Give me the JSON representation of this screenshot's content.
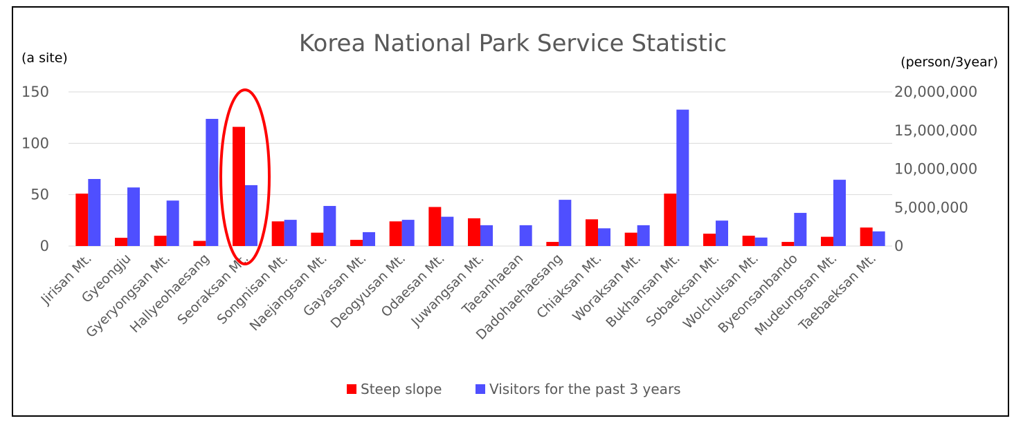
{
  "chart_data": {
    "type": "bar",
    "title": "Korea National Park Service Statistic",
    "left_axis_unit": "(a site)",
    "right_axis_unit": "(person/3year)",
    "categories": [
      "Jirisan Mt.",
      "Gyeongju",
      "Gyeryongsan Mt.",
      "Hallyeohaesang",
      "Seoraksan Mt.",
      "Songnisan Mt.",
      "Naejangsan Mt.",
      "Gayasan Mt.",
      "Deogyusan Mt.",
      "Odaesan Mt.",
      "Juwangsan Mt.",
      "Taeanhaean",
      "Dadohaehaesang",
      "Chiaksan Mt.",
      "Woraksan Mt.",
      "Bukhansan Mt.",
      "Sobaeksan Mt.",
      "Wolchulsan Mt.",
      "Byeonsanbando",
      "Mudeungsan Mt.",
      "Taebaeksan Mt."
    ],
    "series": [
      {
        "name": "Steep slope",
        "axis": "left",
        "color": "#ff0000",
        "values": [
          51,
          8,
          10,
          5,
          116,
          24,
          13,
          6,
          24,
          38,
          27,
          0,
          4,
          26,
          13,
          51,
          12,
          10,
          4,
          9,
          18
        ]
      },
      {
        "name": "Visitors for the past 3 years",
        "axis": "right",
        "color": "#4f4fff",
        "values": [
          8700000,
          7600000,
          5900000,
          16500000,
          7900000,
          3400000,
          5200000,
          1800000,
          3400000,
          3800000,
          2700000,
          2700000,
          6000000,
          2300000,
          2700000,
          17700000,
          3300000,
          1100000,
          4300000,
          8600000,
          1900000
        ]
      }
    ],
    "y_left": {
      "ylim": [
        0,
        150
      ],
      "ticks": [
        0,
        50,
        100,
        150
      ],
      "tick_labels": [
        "0",
        "50",
        "100",
        "150"
      ]
    },
    "y_right": {
      "ylim": [
        0,
        20000000
      ],
      "ticks": [
        0,
        5000000,
        10000000,
        15000000,
        20000000
      ],
      "tick_labels": [
        "0",
        "5,000,000",
        "10,000,000",
        "15,000,000",
        "20,000,000"
      ]
    },
    "grid": true,
    "legend_position": "bottom",
    "annotation": {
      "type": "ellipse",
      "target_category": "Seoraksan Mt.",
      "color": "#ff0000"
    }
  }
}
